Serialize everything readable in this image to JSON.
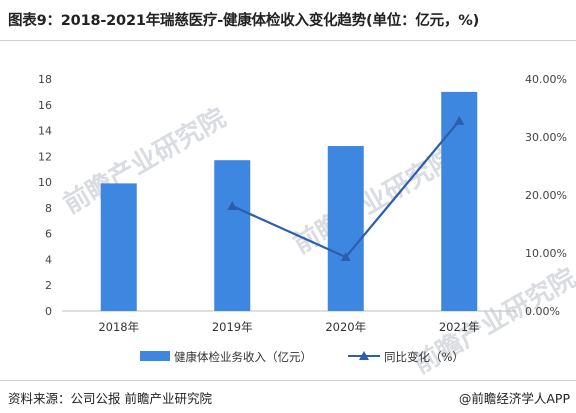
{
  "header": {
    "title": "图表9：2018-2021年瑞慈医疗-健康体检收入变化趋势(单位：亿元，%)"
  },
  "footer": {
    "source": "资料来源：公司公报 前瞻产业研究院",
    "brand": "@前瞻经济学人APP"
  },
  "watermark": {
    "text": "前瞻产业研究院"
  },
  "chart_data": {
    "type": "bar",
    "categories": [
      "2018年",
      "2019年",
      "2020年",
      "2021年"
    ],
    "series": [
      {
        "name": "健康体检业务收入（亿元）",
        "type": "bar",
        "axis": "left",
        "values": [
          9.9,
          11.7,
          12.8,
          17.0
        ],
        "color": "#3e87e0"
      },
      {
        "name": "同比变化（%）",
        "type": "line",
        "axis": "right",
        "values": [
          null,
          18.1,
          9.3,
          32.8
        ],
        "color": "#2b5fae"
      }
    ],
    "y_left": {
      "min": 0,
      "max": 18,
      "ticks": [
        "0",
        "2",
        "4",
        "6",
        "8",
        "10",
        "12",
        "14",
        "16",
        "18"
      ]
    },
    "y_right": {
      "min": 0,
      "max": 40,
      "ticks": [
        "0.00%",
        "10.00%",
        "20.00%",
        "30.00%",
        "40.00%"
      ]
    },
    "grid": false,
    "legend_position": "bottom"
  }
}
